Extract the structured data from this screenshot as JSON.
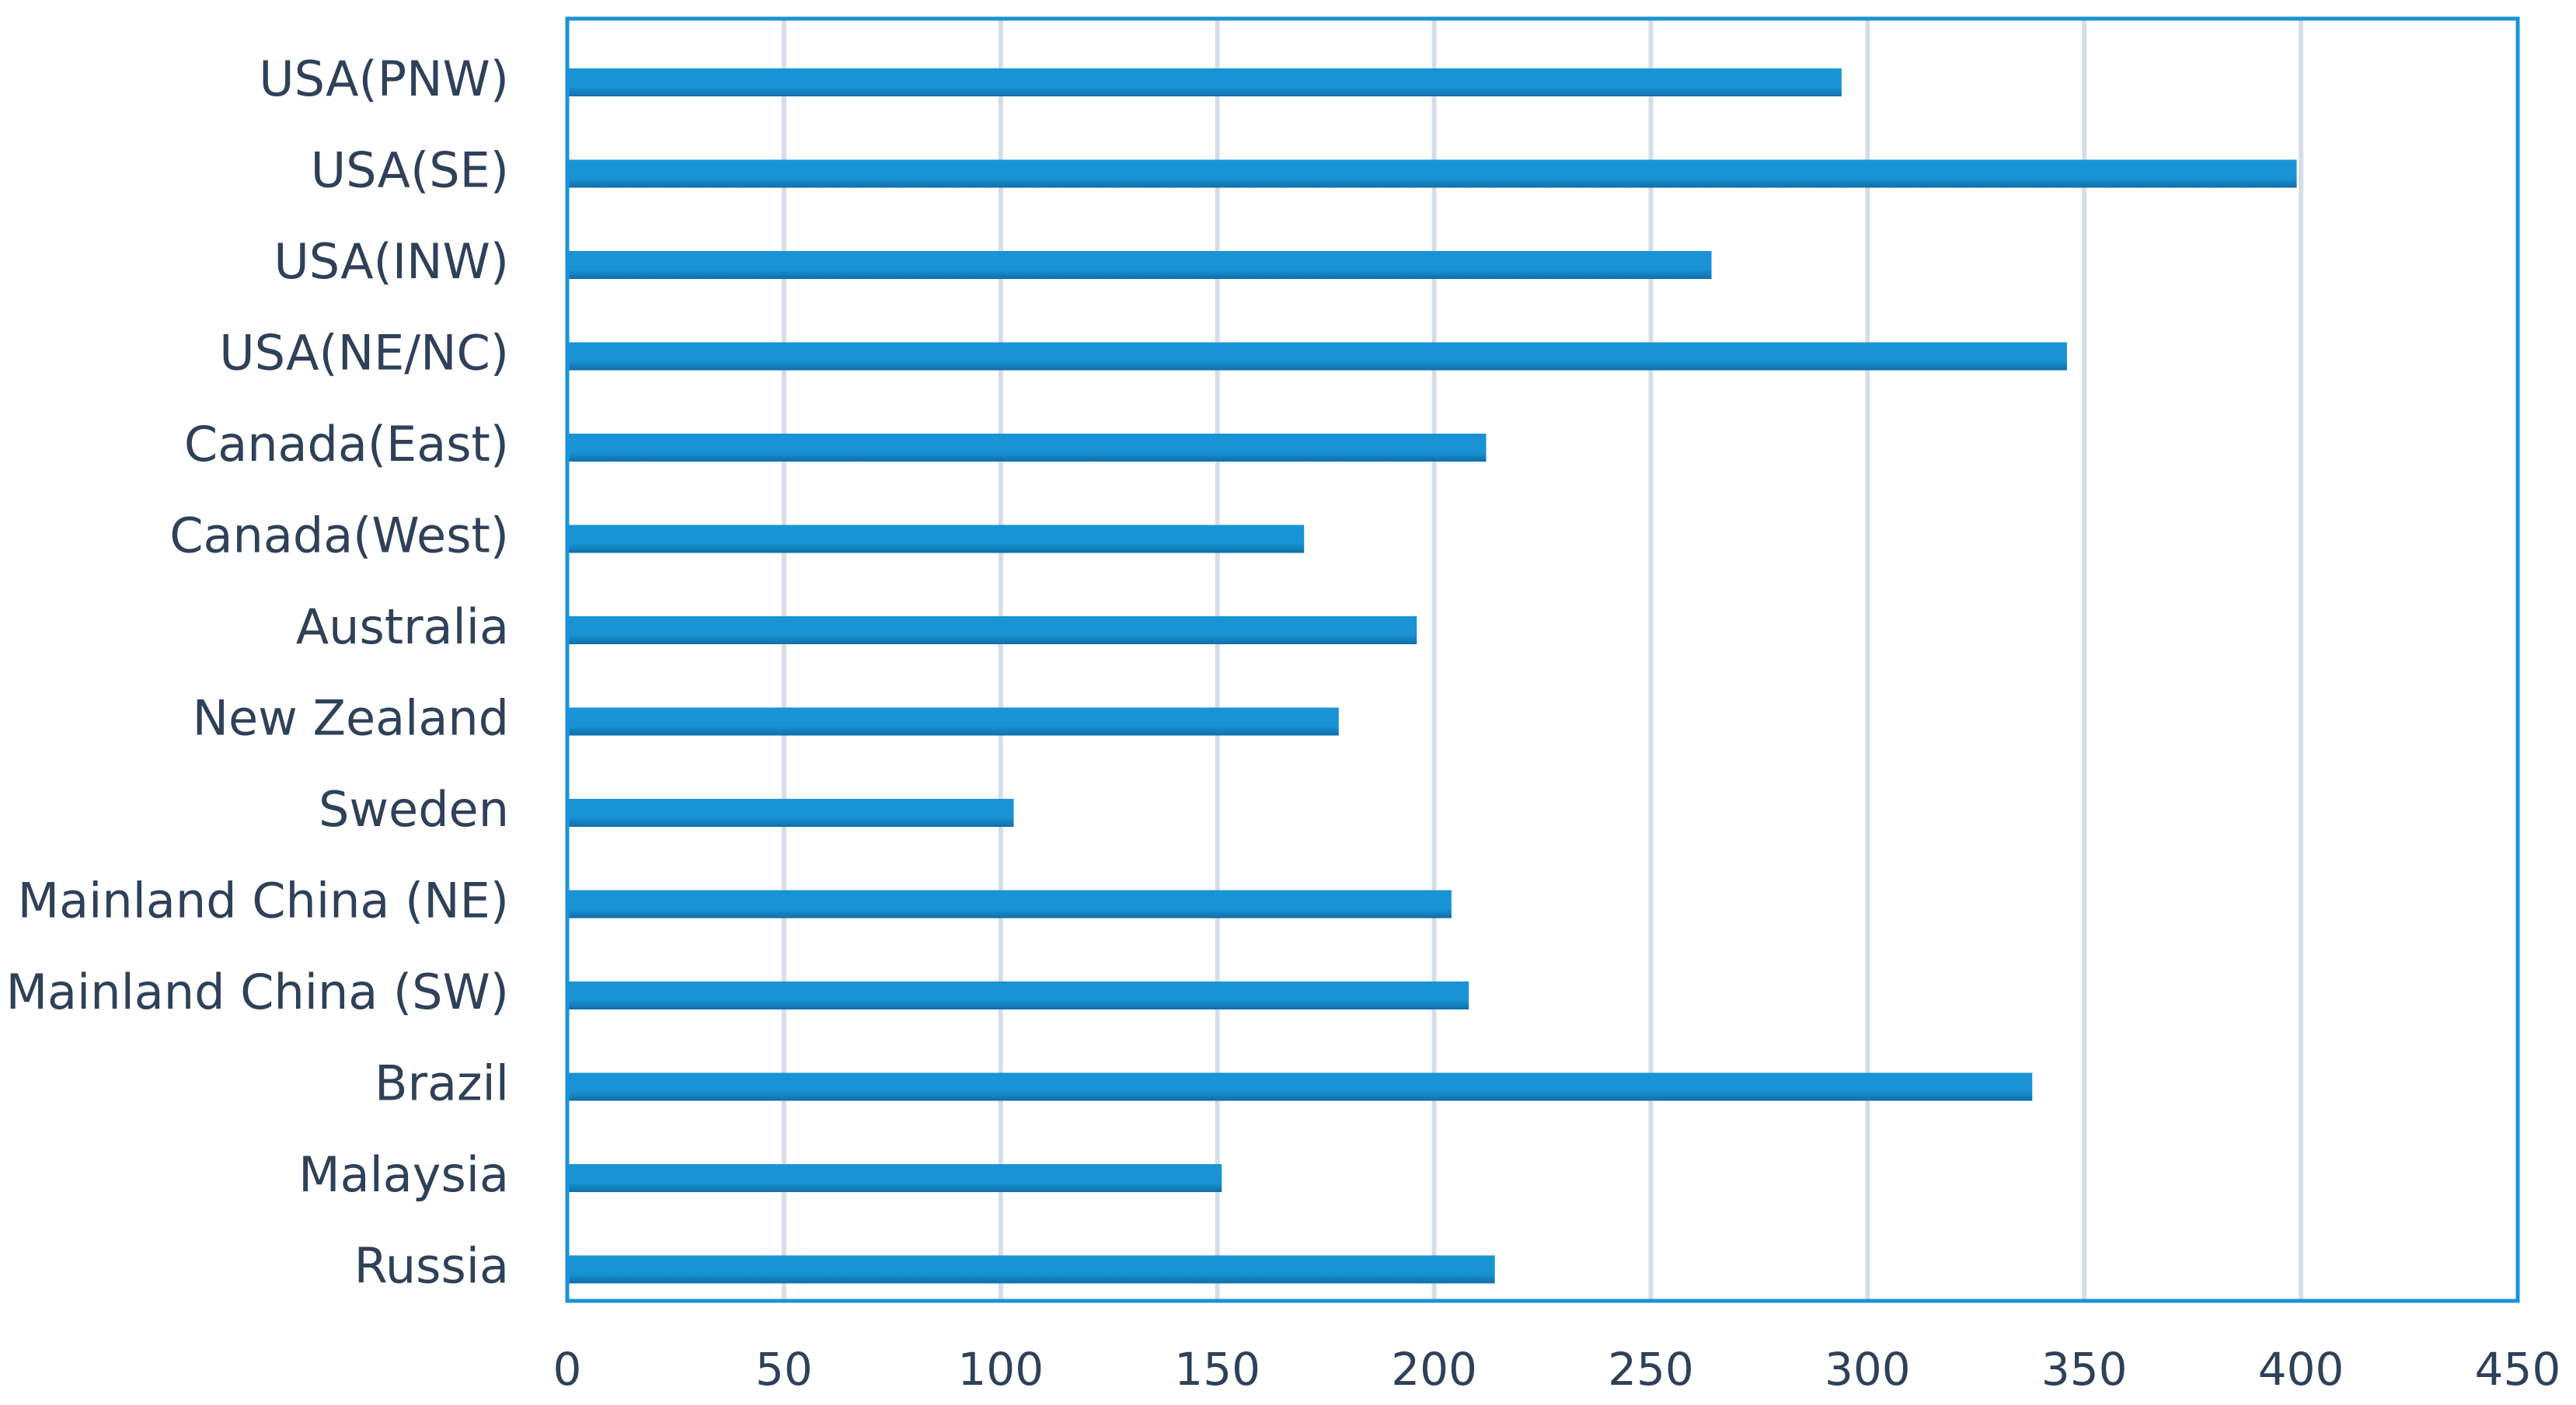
{
  "chart_data": {
    "type": "bar",
    "orientation": "horizontal",
    "categories": [
      "USA(PNW)",
      "USA(SE)",
      "USA(INW)",
      "USA(NE/NC)",
      "Canada(East)",
      "Canada(West)",
      "Australia",
      "New Zealand",
      "Sweden",
      "Mainland China (NE)",
      "Mainland China (SW)",
      "Brazil",
      "Malaysia",
      "Russia"
    ],
    "values": [
      294,
      399,
      264,
      346,
      212,
      170,
      196,
      178,
      103,
      204,
      208,
      338,
      151,
      214
    ],
    "xlim": [
      0,
      450
    ],
    "xticks": [
      0,
      50,
      100,
      150,
      200,
      250,
      300,
      350,
      400,
      450
    ],
    "title": "",
    "xlabel": "",
    "ylabel": "",
    "grid": true,
    "legend": "none",
    "bar_color": "#1a93d6",
    "bar_shadow_color": "#0f6fa8",
    "gridline_color": "#d5dde8",
    "text_color": "#2f4159",
    "frame_color": "#1a93d6"
  }
}
